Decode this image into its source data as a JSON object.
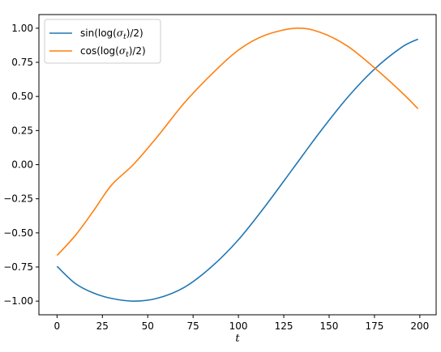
{
  "chart_data": {
    "type": "line",
    "title": "",
    "xlabel": "t",
    "ylabel": "",
    "xlim": [
      -10,
      209
    ],
    "ylim": [
      -1.1,
      1.1
    ],
    "x_ticks": [
      0,
      25,
      50,
      75,
      100,
      125,
      150,
      175,
      200
    ],
    "x_tick_labels": [
      "0",
      "25",
      "50",
      "75",
      "100",
      "125",
      "150",
      "175",
      "200"
    ],
    "y_ticks": [
      1.0,
      0.75,
      0.5,
      0.25,
      0.0,
      -0.25,
      -0.5,
      -0.75,
      -1.0
    ],
    "y_tick_labels": [
      "1.00",
      "0.75",
      "0.50",
      "0.25",
      "0.00",
      "−0.25",
      "−0.50",
      "−0.75",
      "−1.00"
    ],
    "grid": false,
    "legend_position": "top-left",
    "series": [
      {
        "name": "sin(log(σt)/2)",
        "legend": {
          "main": "sin(log(",
          "sym": "σ",
          "sub": "t",
          "tail": ")/2)"
        },
        "color": "#1f77b4",
        "x": [
          0,
          10,
          20,
          30,
          42,
          55,
          70,
          85,
          100,
          115,
          130,
          145,
          160,
          175,
          190,
          199
        ],
        "values": [
          -0.745,
          -0.87,
          -0.94,
          -0.98,
          -1.0,
          -0.98,
          -0.9,
          -0.75,
          -0.55,
          -0.3,
          -0.03,
          0.24,
          0.49,
          0.7,
          0.86,
          0.92
        ]
      },
      {
        "name": "cos(log(σt)/2)",
        "legend": {
          "main": "cos(log(",
          "sym": "σ",
          "sub": "t",
          "tail": ")/2)"
        },
        "color": "#ff7f0e",
        "x": [
          0,
          10,
          20,
          30,
          42,
          55,
          70,
          85,
          100,
          115,
          132,
          145,
          160,
          175,
          190,
          199
        ],
        "values": [
          -0.665,
          -0.52,
          -0.34,
          -0.15,
          0.0,
          0.2,
          0.45,
          0.66,
          0.84,
          0.95,
          1.0,
          0.97,
          0.87,
          0.71,
          0.53,
          0.41
        ]
      }
    ]
  }
}
